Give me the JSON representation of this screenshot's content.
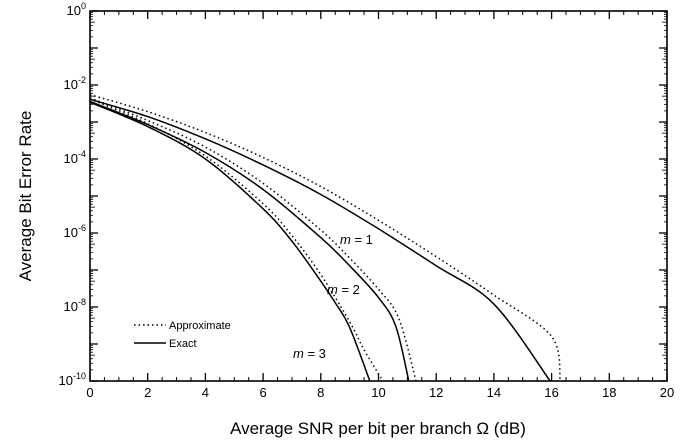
{
  "chart_data": {
    "type": "line",
    "xlabel": "Average SNR per bit per branch Ω (dB)",
    "ylabel": "Average Bit Error Rate",
    "xlim": [
      0,
      20
    ],
    "ylim": [
      1e-10,
      1
    ],
    "yscale": "log",
    "xticks": [
      "0",
      "2",
      "4",
      "6",
      "8",
      "10",
      "12",
      "14",
      "16",
      "18",
      "20"
    ],
    "yticks": [
      {
        "base": "10",
        "exp": "0",
        "value": 1
      },
      {
        "base": "10",
        "exp": "-2",
        "value": 0.01
      },
      {
        "base": "10",
        "exp": "-4",
        "value": 0.0001
      },
      {
        "base": "10",
        "exp": "-6",
        "value": 1e-06
      },
      {
        "base": "10",
        "exp": "-8",
        "value": 1e-08
      },
      {
        "base": "10",
        "exp": "-10",
        "value": 1e-10
      }
    ],
    "legend": {
      "position": "bottom-left",
      "entries": [
        {
          "label": "Approximate",
          "style": "dotted"
        },
        {
          "label": "Exact",
          "style": "solid"
        }
      ]
    },
    "series": [
      {
        "label": "m = 1",
        "approximate": {
          "x": [
            0,
            2,
            4,
            6,
            8,
            10,
            12,
            14,
            16,
            16.3
          ],
          "y": [
            0.0055,
            0.0019,
            0.00052,
            0.00011,
            1.8e-05,
            2.2e-06,
            2.3e-07,
            2.1e-08,
            1.6e-09,
            1e-10
          ]
        },
        "exact": {
          "x": [
            0,
            2,
            4,
            6,
            8,
            10,
            12,
            14,
            15.95
          ],
          "y": [
            0.0041,
            0.0014,
            0.00035,
            6.9e-05,
            1.1e-05,
            1.3e-06,
            1.3e-07,
            1.2e-08,
            1e-10
          ]
        }
      },
      {
        "label": "m = 2",
        "approximate": {
          "x": [
            0,
            2,
            4,
            6,
            8,
            9,
            10,
            10.7,
            11.3
          ],
          "y": [
            0.0045,
            0.0011,
            0.00021,
            2.2e-05,
            1.2e-06,
            2.1e-07,
            3e-08,
            5e-09,
            1e-10
          ]
        },
        "exact": {
          "x": [
            0,
            2,
            4,
            6,
            8,
            9,
            10,
            10.6,
            11.05
          ],
          "y": [
            0.0036,
            0.00085,
            0.00015,
            1.5e-05,
            7.5e-07,
            1.3e-07,
            1.8e-08,
            3e-09,
            1e-10
          ]
        }
      },
      {
        "label": "m = 3",
        "approximate": {
          "x": [
            0,
            2,
            4,
            6,
            7,
            8,
            9,
            9.5,
            10.15
          ],
          "y": [
            0.0042,
            0.0009,
            0.00012,
            6.2e-06,
            8.5e-07,
            7.5e-08,
            4e-09,
            7e-10,
            1e-10
          ]
        },
        "exact": {
          "x": [
            0,
            2,
            4,
            6,
            7,
            8,
            8.5,
            9,
            9.7
          ],
          "y": [
            0.0034,
            0.00075,
            0.0001,
            4.5e-06,
            6e-07,
            5e-08,
            1.3e-08,
            2.8e-09,
            1e-10
          ]
        }
      }
    ]
  }
}
